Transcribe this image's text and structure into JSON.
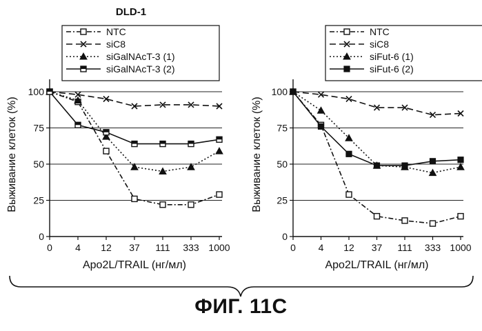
{
  "figure": {
    "caption": "ФИГ. 11С",
    "panel_title": "DLD-1"
  },
  "chart_data": [
    {
      "type": "line",
      "title": "DLD-1",
      "xlabel": "Apo2L/TRAIL (нг/мл)",
      "ylabel": "Выживание клеток (%)",
      "x_ticks": [
        "0",
        "4",
        "12",
        "37",
        "111",
        "333",
        "1000"
      ],
      "y_ticks": [
        "0",
        "25",
        "50",
        "75",
        "100"
      ],
      "ylim": [
        0,
        100
      ],
      "grid": "horizontal",
      "legend_position": "top",
      "series": [
        {
          "name": "NTC",
          "style": "dash-dot",
          "marker": "open-square",
          "values": [
            100,
            93,
            59,
            26,
            22,
            22,
            29
          ]
        },
        {
          "name": "siC8",
          "style": "dashed",
          "marker": "x",
          "values": [
            100,
            98,
            95,
            90,
            91,
            91,
            90
          ]
        },
        {
          "name": "siGalNAcT-3 (1)",
          "style": "dotted",
          "marker": "triangle",
          "values": [
            100,
            94,
            69,
            48,
            45,
            48,
            59
          ]
        },
        {
          "name": "siGalNAcT-3 (2)",
          "style": "solid",
          "marker": "half-square",
          "values": [
            100,
            77,
            72,
            64,
            64,
            64,
            67
          ]
        }
      ]
    },
    {
      "type": "line",
      "title": "",
      "xlabel": "Apo2L/TRAIL (нг/мл)",
      "ylabel": "Выживание клеток (%)",
      "x_ticks": [
        "0",
        "4",
        "12",
        "37",
        "111",
        "333",
        "1000"
      ],
      "y_ticks": [
        "0",
        "25",
        "50",
        "75",
        "100"
      ],
      "ylim": [
        0,
        100
      ],
      "grid": "horizontal",
      "legend_position": "top",
      "series": [
        {
          "name": "NTC",
          "style": "dash-dot",
          "marker": "open-square",
          "values": [
            100,
            77,
            29,
            14,
            11,
            9,
            14
          ]
        },
        {
          "name": "siC8",
          "style": "dashed",
          "marker": "x",
          "values": [
            100,
            98,
            95,
            89,
            89,
            84,
            85
          ]
        },
        {
          "name": "siFut-6 (1)",
          "style": "dotted",
          "marker": "triangle",
          "values": [
            100,
            87,
            68,
            49,
            48,
            44,
            48
          ]
        },
        {
          "name": "siFut-6 (2)",
          "style": "solid",
          "marker": "filled-square",
          "values": [
            100,
            76,
            57,
            49,
            49,
            52,
            53
          ]
        }
      ]
    }
  ]
}
